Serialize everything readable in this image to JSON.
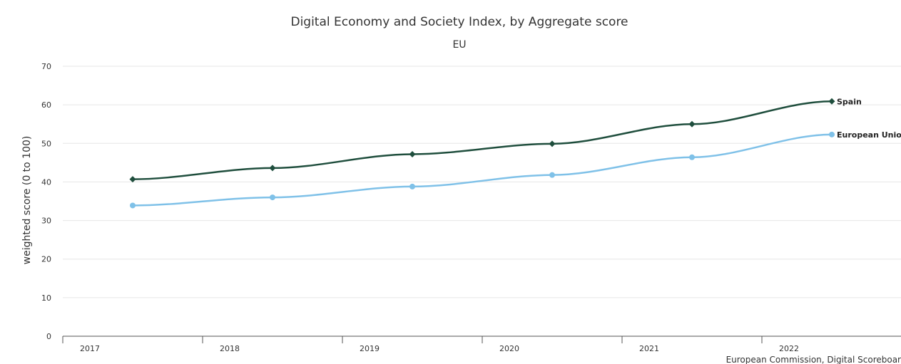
{
  "chart_data": {
    "type": "line",
    "title": "Digital Economy and Society Index, by Aggregate score",
    "subtitle": "EU",
    "ylabel": "weighted score (0 to 100)",
    "xlabel": "",
    "categories": [
      "2017",
      "2018",
      "2019",
      "2020",
      "2021",
      "2022"
    ],
    "ylim": [
      0,
      70
    ],
    "yticks": [
      0,
      10,
      20,
      30,
      40,
      50,
      60,
      70
    ],
    "grid": true,
    "legend": "none",
    "series": [
      {
        "name": "Spain",
        "values": [
          40.7,
          43.6,
          47.2,
          49.9,
          55.0,
          60.9
        ],
        "color": "#1f4e3d",
        "marker": "diamond"
      },
      {
        "name": "European Union",
        "values": [
          33.9,
          36.0,
          38.8,
          41.8,
          46.4,
          52.3
        ],
        "color": "#7fc1e8",
        "marker": "circle"
      }
    ],
    "credits": "European Commission, Digital Scoreboar"
  }
}
